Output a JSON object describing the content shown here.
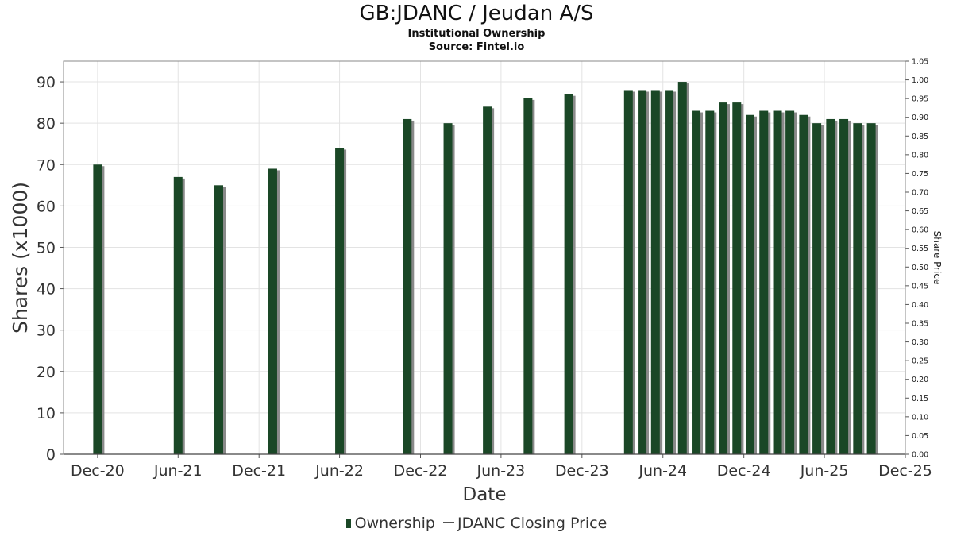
{
  "header": {
    "title": "GB:JDANC / Jeudan A/S",
    "subtitle1": "Institutional Ownership",
    "subtitle2": "Source: Fintel.io"
  },
  "colors": {
    "bar": "#1a4726",
    "bar_shadow": "#8a8a8a",
    "grid": "#e3e3e3",
    "axis": "#555555"
  },
  "chart_data": {
    "type": "bar",
    "title": "GB:JDANC / Jeudan A/S",
    "subtitle": "Institutional Ownership",
    "xlabel": "Date",
    "ylabel": "Shares (x1000)",
    "y2label": "Share Price",
    "xlim": [
      "2020-09-15",
      "2025-12-01"
    ],
    "ylim": [
      0,
      95
    ],
    "y2lim": [
      0,
      1.05
    ],
    "x_tick_labels": [
      "Dec-20",
      "Jun-21",
      "Dec-21",
      "Jun-22",
      "Dec-22",
      "Jun-23",
      "Dec-23",
      "Jun-24",
      "Dec-24",
      "Jun-25",
      "Dec-25"
    ],
    "x_tick_dates": [
      "2020-12-01",
      "2021-06-01",
      "2021-12-01",
      "2022-06-01",
      "2022-12-01",
      "2023-06-01",
      "2023-12-01",
      "2024-06-01",
      "2024-12-01",
      "2025-06-01",
      "2025-12-01"
    ],
    "y_ticks": [
      "0",
      "10",
      "20",
      "30",
      "40",
      "50",
      "60",
      "70",
      "80",
      "90"
    ],
    "y2_ticks": [
      "0.00",
      "0.05",
      "0.10",
      "0.15",
      "0.20",
      "0.25",
      "0.30",
      "0.35",
      "0.40",
      "0.45",
      "0.50",
      "0.55",
      "0.60",
      "0.65",
      "0.70",
      "0.75",
      "0.80",
      "0.85",
      "0.90",
      "0.95",
      "1.00",
      "1.05"
    ],
    "grid": true,
    "legend_position": "bottom",
    "series": [
      {
        "name": "Ownership",
        "kind": "bar",
        "points": [
          {
            "x": "2020-12-01",
            "y": 70
          },
          {
            "x": "2021-06-01",
            "y": 67
          },
          {
            "x": "2021-09-01",
            "y": 65
          },
          {
            "x": "2022-01-01",
            "y": 69
          },
          {
            "x": "2022-06-01",
            "y": 74
          },
          {
            "x": "2022-11-01",
            "y": 81
          },
          {
            "x": "2023-02-01",
            "y": 80
          },
          {
            "x": "2023-05-01",
            "y": 84
          },
          {
            "x": "2023-08-01",
            "y": 86
          },
          {
            "x": "2023-11-01",
            "y": 87
          },
          {
            "x": "2024-03-15",
            "y": 88
          },
          {
            "x": "2024-04-15",
            "y": 88
          },
          {
            "x": "2024-05-15",
            "y": 88
          },
          {
            "x": "2024-06-15",
            "y": 88
          },
          {
            "x": "2024-07-15",
            "y": 90
          },
          {
            "x": "2024-08-15",
            "y": 83
          },
          {
            "x": "2024-09-15",
            "y": 83
          },
          {
            "x": "2024-10-15",
            "y": 85
          },
          {
            "x": "2024-11-15",
            "y": 85
          },
          {
            "x": "2024-12-15",
            "y": 82
          },
          {
            "x": "2025-01-15",
            "y": 83
          },
          {
            "x": "2025-02-15",
            "y": 83
          },
          {
            "x": "2025-03-15",
            "y": 83
          },
          {
            "x": "2025-04-15",
            "y": 82
          },
          {
            "x": "2025-05-15",
            "y": 80
          },
          {
            "x": "2025-06-15",
            "y": 81
          },
          {
            "x": "2025-07-15",
            "y": 81
          },
          {
            "x": "2025-08-15",
            "y": 80
          },
          {
            "x": "2025-09-15",
            "y": 80
          }
        ]
      },
      {
        "name": "JDANC Closing Price",
        "kind": "line",
        "points": []
      }
    ]
  },
  "legend": {
    "items": [
      {
        "label": "Ownership"
      },
      {
        "label": "JDANC Closing Price"
      }
    ]
  }
}
